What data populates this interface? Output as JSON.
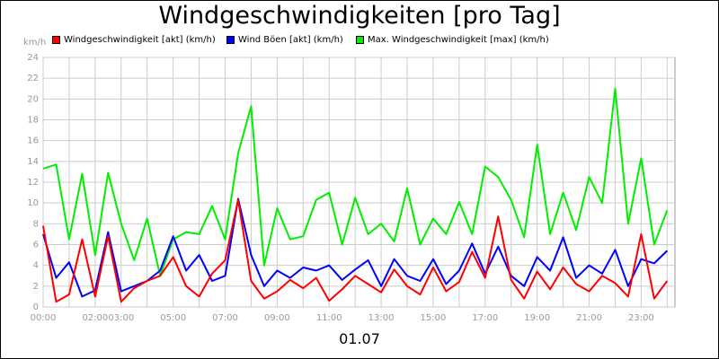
{
  "chart_data": {
    "type": "line",
    "title": "Windgeschwindigkeiten [pro Tag]",
    "ylabel": "km/h",
    "xlabel": "",
    "date_label": "01.07",
    "ylim": [
      0,
      24
    ],
    "yticks": [
      0,
      2,
      4,
      6,
      8,
      10,
      12,
      14,
      16,
      18,
      20,
      22,
      24
    ],
    "xlim_hours": [
      0,
      24.3
    ],
    "xticks": [
      {
        "label": "00:00",
        "hour": 0
      },
      {
        "label": "02:00",
        "hour": 2
      },
      {
        "label": "03:00",
        "hour": 3
      },
      {
        "label": "05:00",
        "hour": 5
      },
      {
        "label": "07:00",
        "hour": 7
      },
      {
        "label": "09:00",
        "hour": 9
      },
      {
        "label": "11:00",
        "hour": 11
      },
      {
        "label": "13:00",
        "hour": 13
      },
      {
        "label": "15:00",
        "hour": 15
      },
      {
        "label": "17:00",
        "hour": 17
      },
      {
        "label": "19:00",
        "hour": 19
      },
      {
        "label": "21:00",
        "hour": 21
      },
      {
        "label": "23:00",
        "hour": 23
      }
    ],
    "grid": true,
    "legend_position": "top",
    "series": [
      {
        "name": "Windgeschwindigkeit [akt] (km/h)",
        "color": "#ff0000",
        "x": [
          "00:00",
          "00:30",
          "01:00",
          "01:30",
          "02:00",
          "02:30",
          "03:00",
          "03:30",
          "04:00",
          "04:30",
          "05:00",
          "05:30",
          "06:00",
          "06:30",
          "07:00",
          "07:30",
          "08:00",
          "08:30",
          "09:00",
          "09:30",
          "10:00",
          "10:30",
          "11:00",
          "11:30",
          "12:00",
          "12:30",
          "13:00",
          "13:30",
          "14:00",
          "14:30",
          "15:00",
          "15:30",
          "16:00",
          "16:30",
          "17:00",
          "17:30",
          "18:00",
          "18:30",
          "19:00",
          "19:30",
          "20:00",
          "20:30",
          "21:00",
          "21:30",
          "22:00",
          "22:30",
          "23:00",
          "23:30",
          "24:00"
        ],
        "values": [
          7.8,
          0.5,
          1.2,
          6.5,
          1.0,
          6.8,
          0.5,
          1.8,
          2.5,
          3.0,
          4.8,
          2.0,
          1.0,
          3.2,
          4.5,
          10.3,
          2.5,
          0.8,
          1.5,
          2.6,
          1.8,
          2.8,
          0.6,
          1.7,
          3.0,
          2.2,
          1.4,
          3.6,
          2.0,
          1.2,
          3.8,
          1.5,
          2.4,
          5.3,
          2.8,
          8.7,
          2.6,
          0.8,
          3.4,
          1.7,
          3.8,
          2.2,
          1.5,
          3.0,
          2.3,
          1.0,
          7.0,
          0.8,
          2.5
        ]
      },
      {
        "name": "Wind Böen [akt] (km/h)",
        "color": "#0000ff",
        "x": [
          "00:00",
          "00:30",
          "01:00",
          "01:30",
          "02:00",
          "02:30",
          "03:00",
          "03:30",
          "04:00",
          "04:30",
          "05:00",
          "05:30",
          "06:00",
          "06:30",
          "07:00",
          "07:30",
          "08:00",
          "08:30",
          "09:00",
          "09:30",
          "10:00",
          "10:30",
          "11:00",
          "11:30",
          "12:00",
          "12:30",
          "13:00",
          "13:30",
          "14:00",
          "14:30",
          "15:00",
          "15:30",
          "16:00",
          "16:30",
          "17:00",
          "17:30",
          "18:00",
          "18:30",
          "19:00",
          "19:30",
          "20:00",
          "20:30",
          "21:00",
          "21:30",
          "22:00",
          "22:30",
          "23:00",
          "23:30",
          "24:00"
        ],
        "values": [
          7.0,
          2.8,
          4.3,
          1.0,
          1.6,
          7.2,
          1.5,
          2.0,
          2.5,
          3.5,
          6.8,
          3.5,
          5.0,
          2.5,
          3.0,
          10.4,
          5.0,
          2.0,
          3.5,
          2.8,
          3.8,
          3.5,
          4.0,
          2.6,
          3.6,
          4.5,
          2.0,
          4.6,
          3.0,
          2.5,
          4.6,
          2.2,
          3.5,
          6.1,
          3.2,
          5.8,
          3.0,
          2.0,
          4.8,
          3.5,
          6.7,
          2.8,
          4.0,
          3.2,
          5.5,
          2.0,
          4.6,
          4.2,
          5.4
        ]
      },
      {
        "name": "Max. Windgeschwindigkeit [max] (km/h)",
        "color": "#00ee00",
        "x": [
          "00:00",
          "00:30",
          "01:00",
          "01:30",
          "02:00",
          "02:30",
          "03:00",
          "03:30",
          "04:00",
          "04:30",
          "05:00",
          "05:30",
          "06:00",
          "06:30",
          "07:00",
          "07:30",
          "08:00",
          "08:30",
          "09:00",
          "09:30",
          "10:00",
          "10:30",
          "11:00",
          "11:30",
          "12:00",
          "12:30",
          "13:00",
          "13:30",
          "14:00",
          "14:30",
          "15:00",
          "15:30",
          "16:00",
          "16:30",
          "17:00",
          "17:30",
          "18:00",
          "18:30",
          "19:00",
          "19:30",
          "20:00",
          "20:30",
          "21:00",
          "21:30",
          "22:00",
          "22:30",
          "23:00",
          "23:30",
          "24:00"
        ],
        "values": [
          13.3,
          13.7,
          6.5,
          12.8,
          5.0,
          12.9,
          8.0,
          4.5,
          8.5,
          3.0,
          6.5,
          7.2,
          7.0,
          9.7,
          6.5,
          14.8,
          19.3,
          4.0,
          9.5,
          6.5,
          6.8,
          10.3,
          11.0,
          6.0,
          10.5,
          7.0,
          8.0,
          6.3,
          11.4,
          6.0,
          8.5,
          7.0,
          10.1,
          7.0,
          13.5,
          12.5,
          10.3,
          6.7,
          15.6,
          7.0,
          11.0,
          7.4,
          12.5,
          10.0,
          21.0,
          8.0,
          14.3,
          6.0,
          9.3
        ]
      }
    ]
  }
}
